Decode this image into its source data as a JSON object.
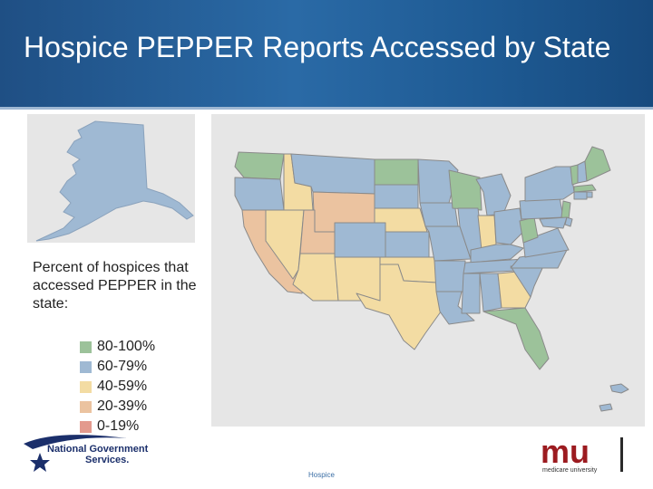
{
  "slide": {
    "title": "Hospice PEPPER Reports Accessed by State",
    "footer": "Hospice"
  },
  "legend": {
    "title": "Percent of hospices that accessed PEPPER in the state:",
    "items": [
      {
        "label": "80-100%",
        "color": "#9cc29a"
      },
      {
        "label": "60-79%",
        "color": "#9fb9d3"
      },
      {
        "label": "40-59%",
        "color": "#f3dca3"
      },
      {
        "label": "20-39%",
        "color": "#ebc3a0"
      },
      {
        "label": "0-19%",
        "color": "#e39a8e"
      }
    ]
  },
  "logos": {
    "ngs_line1": "National Government",
    "ngs_line2": "Services.",
    "mu_letters": "mu",
    "mu_caption": "medicare university"
  },
  "colors": {
    "header_blue": "#1f4f84",
    "map_background": "#e6e6e6",
    "mu_red": "#9c1b20"
  }
}
